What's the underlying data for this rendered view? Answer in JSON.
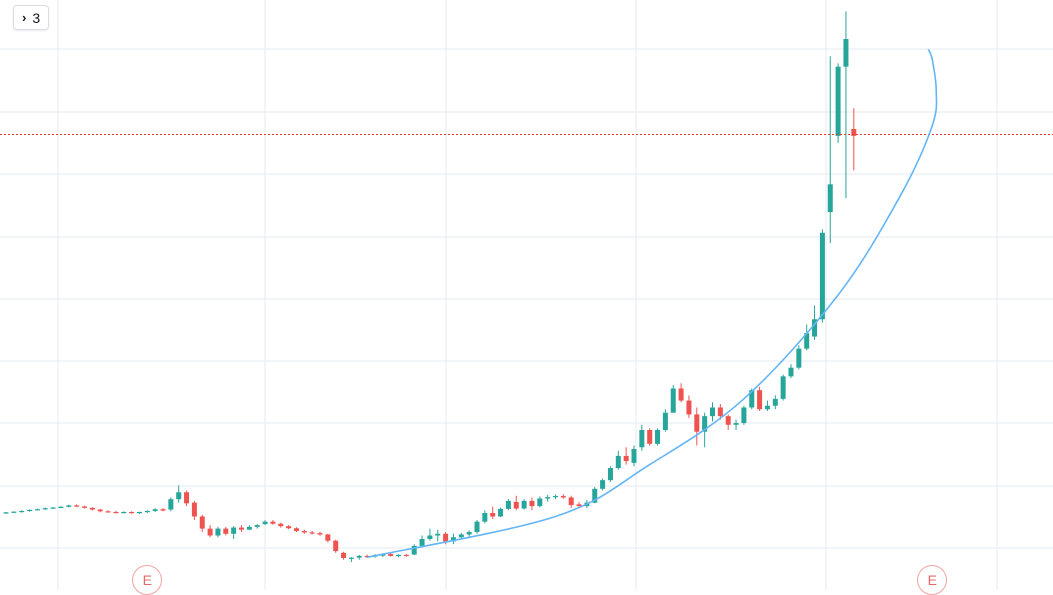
{
  "toolbar": {
    "collapse_count": "3"
  },
  "colors": {
    "up": "#26a69a",
    "down": "#ef5350",
    "trend": "#64b5f6",
    "price_line": "#e53935",
    "grid": "#e6ebf1"
  },
  "events": [
    {
      "label": "E",
      "index": 18
    },
    {
      "label": "E",
      "index": 118
    }
  ],
  "chart_data": {
    "type": "candlestick",
    "price_line": 122.4,
    "grid": true,
    "y_range": [
      0,
      150
    ],
    "candles": [
      {
        "o": 13.0,
        "h": 13.3,
        "l": 12.8,
        "c": 13.2
      },
      {
        "o": 13.2,
        "h": 13.5,
        "l": 13.0,
        "c": 13.4
      },
      {
        "o": 13.4,
        "h": 13.8,
        "l": 13.1,
        "c": 13.6
      },
      {
        "o": 13.6,
        "h": 14.0,
        "l": 13.4,
        "c": 13.9
      },
      {
        "o": 13.9,
        "h": 14.3,
        "l": 13.8,
        "c": 14.1
      },
      {
        "o": 14.1,
        "h": 14.6,
        "l": 13.9,
        "c": 14.4
      },
      {
        "o": 14.4,
        "h": 14.7,
        "l": 14.2,
        "c": 14.6
      },
      {
        "o": 14.6,
        "h": 15.0,
        "l": 14.4,
        "c": 14.8
      },
      {
        "o": 14.8,
        "h": 15.4,
        "l": 14.6,
        "c": 15.2
      },
      {
        "o": 15.2,
        "h": 15.5,
        "l": 14.7,
        "c": 14.9
      },
      {
        "o": 14.9,
        "h": 15.1,
        "l": 14.3,
        "c": 14.5
      },
      {
        "o": 14.5,
        "h": 14.7,
        "l": 13.7,
        "c": 14.0
      },
      {
        "o": 14.0,
        "h": 14.2,
        "l": 13.2,
        "c": 13.5
      },
      {
        "o": 13.5,
        "h": 13.8,
        "l": 13.1,
        "c": 13.3
      },
      {
        "o": 13.3,
        "h": 13.6,
        "l": 12.9,
        "c": 13.2
      },
      {
        "o": 13.2,
        "h": 13.5,
        "l": 12.9,
        "c": 13.3
      },
      {
        "o": 13.3,
        "h": 13.5,
        "l": 12.8,
        "c": 13.0
      },
      {
        "o": 13.0,
        "h": 13.4,
        "l": 12.7,
        "c": 13.3
      },
      {
        "o": 13.3,
        "h": 13.8,
        "l": 13.0,
        "c": 13.6
      },
      {
        "o": 13.6,
        "h": 14.4,
        "l": 13.3,
        "c": 14.1
      },
      {
        "o": 14.1,
        "h": 14.5,
        "l": 13.5,
        "c": 13.7
      },
      {
        "o": 14.0,
        "h": 17.5,
        "l": 13.5,
        "c": 17.0
      },
      {
        "o": 17.0,
        "h": 21.0,
        "l": 16.0,
        "c": 19.0
      },
      {
        "o": 19.0,
        "h": 19.5,
        "l": 15.0,
        "c": 15.8
      },
      {
        "o": 16.0,
        "h": 16.5,
        "l": 11.0,
        "c": 12.0
      },
      {
        "o": 12.0,
        "h": 12.5,
        "l": 7.5,
        "c": 8.5
      },
      {
        "o": 8.5,
        "h": 9.5,
        "l": 6.0,
        "c": 6.5
      },
      {
        "o": 6.5,
        "h": 9.0,
        "l": 6.0,
        "c": 8.5
      },
      {
        "o": 8.5,
        "h": 9.0,
        "l": 6.5,
        "c": 7.0
      },
      {
        "o": 7.0,
        "h": 9.2,
        "l": 5.5,
        "c": 8.8
      },
      {
        "o": 8.8,
        "h": 9.5,
        "l": 7.5,
        "c": 8.2
      },
      {
        "o": 8.2,
        "h": 9.5,
        "l": 8.0,
        "c": 9.0
      },
      {
        "o": 9.0,
        "h": 9.8,
        "l": 8.5,
        "c": 9.5
      },
      {
        "o": 9.8,
        "h": 11.0,
        "l": 9.5,
        "c": 10.5
      },
      {
        "o": 10.5,
        "h": 11.0,
        "l": 9.6,
        "c": 9.9
      },
      {
        "o": 9.9,
        "h": 10.2,
        "l": 8.8,
        "c": 9.2
      },
      {
        "o": 9.2,
        "h": 9.5,
        "l": 8.3,
        "c": 8.6
      },
      {
        "o": 8.6,
        "h": 8.9,
        "l": 7.5,
        "c": 7.8
      },
      {
        "o": 7.8,
        "h": 8.2,
        "l": 7.0,
        "c": 7.4
      },
      {
        "o": 7.4,
        "h": 7.8,
        "l": 6.8,
        "c": 7.2
      },
      {
        "o": 7.2,
        "h": 7.6,
        "l": 6.4,
        "c": 6.8
      },
      {
        "o": 6.8,
        "h": 7.0,
        "l": 4.5,
        "c": 5.0
      },
      {
        "o": 5.0,
        "h": 5.3,
        "l": 1.5,
        "c": 2.0
      },
      {
        "o": 1.5,
        "h": 1.8,
        "l": -0.5,
        "c": 0.0
      },
      {
        "o": -0.2,
        "h": 0.3,
        "l": -1.2,
        "c": 0.1
      },
      {
        "o": 0.1,
        "h": 0.9,
        "l": -0.5,
        "c": 0.6
      },
      {
        "o": 0.6,
        "h": 1.0,
        "l": 0.0,
        "c": 0.4
      },
      {
        "o": 0.4,
        "h": 1.1,
        "l": 0.1,
        "c": 0.8
      },
      {
        "o": 0.8,
        "h": 1.3,
        "l": 0.3,
        "c": 1.0
      },
      {
        "o": 1.2,
        "h": 1.5,
        "l": 0.4,
        "c": 0.6
      },
      {
        "o": 0.6,
        "h": 1.1,
        "l": 0.2,
        "c": 0.9
      },
      {
        "o": 0.9,
        "h": 1.2,
        "l": 0.4,
        "c": 0.7
      },
      {
        "o": 1.0,
        "h": 4.0,
        "l": 0.8,
        "c": 3.5
      },
      {
        "o": 3.5,
        "h": 6.5,
        "l": 3.0,
        "c": 5.5
      },
      {
        "o": 5.5,
        "h": 8.5,
        "l": 5.0,
        "c": 6.5
      },
      {
        "o": 6.5,
        "h": 8.2,
        "l": 4.8,
        "c": 7.0
      },
      {
        "o": 7.0,
        "h": 7.5,
        "l": 4.0,
        "c": 4.8
      },
      {
        "o": 4.8,
        "h": 7.0,
        "l": 4.0,
        "c": 6.0
      },
      {
        "o": 6.0,
        "h": 7.3,
        "l": 5.4,
        "c": 6.8
      },
      {
        "o": 6.8,
        "h": 8.0,
        "l": 6.0,
        "c": 7.5
      },
      {
        "o": 7.5,
        "h": 11.0,
        "l": 7.0,
        "c": 10.5
      },
      {
        "o": 10.5,
        "h": 13.8,
        "l": 10.0,
        "c": 13.0
      },
      {
        "o": 13.0,
        "h": 14.8,
        "l": 11.3,
        "c": 12.0
      },
      {
        "o": 12.0,
        "h": 14.6,
        "l": 11.8,
        "c": 14.2
      },
      {
        "o": 14.2,
        "h": 17.0,
        "l": 13.8,
        "c": 16.5
      },
      {
        "o": 16.2,
        "h": 18.0,
        "l": 13.8,
        "c": 14.3
      },
      {
        "o": 14.3,
        "h": 17.0,
        "l": 14.0,
        "c": 16.5
      },
      {
        "o": 16.5,
        "h": 17.5,
        "l": 13.8,
        "c": 15.0
      },
      {
        "o": 15.0,
        "h": 17.8,
        "l": 14.6,
        "c": 17.2
      },
      {
        "o": 17.2,
        "h": 18.2,
        "l": 16.3,
        "c": 17.6
      },
      {
        "o": 17.6,
        "h": 18.4,
        "l": 17.0,
        "c": 17.9
      },
      {
        "o": 17.9,
        "h": 18.4,
        "l": 17.1,
        "c": 17.5
      },
      {
        "o": 17.5,
        "h": 18.0,
        "l": 14.5,
        "c": 15.3
      },
      {
        "o": 15.5,
        "h": 16.2,
        "l": 14.8,
        "c": 15.0
      },
      {
        "o": 15.0,
        "h": 16.8,
        "l": 14.5,
        "c": 16.0
      },
      {
        "o": 16.0,
        "h": 20.5,
        "l": 15.8,
        "c": 20.0
      },
      {
        "o": 20.0,
        "h": 23.0,
        "l": 19.5,
        "c": 22.5
      },
      {
        "o": 22.5,
        "h": 26.5,
        "l": 22.0,
        "c": 26.0
      },
      {
        "o": 26.0,
        "h": 31.0,
        "l": 25.5,
        "c": 29.5
      },
      {
        "o": 29.5,
        "h": 32.0,
        "l": 27.0,
        "c": 28.0
      },
      {
        "o": 27.5,
        "h": 32.5,
        "l": 26.5,
        "c": 31.5
      },
      {
        "o": 32.0,
        "h": 38.5,
        "l": 31.0,
        "c": 37.0
      },
      {
        "o": 37.0,
        "h": 37.5,
        "l": 32.5,
        "c": 33.0
      },
      {
        "o": 33.0,
        "h": 37.5,
        "l": 32.5,
        "c": 37.0
      },
      {
        "o": 37.0,
        "h": 43.0,
        "l": 36.5,
        "c": 42.0
      },
      {
        "o": 42.0,
        "h": 50.0,
        "l": 42.0,
        "c": 49.0
      },
      {
        "o": 49.0,
        "h": 50.5,
        "l": 45.0,
        "c": 45.5
      },
      {
        "o": 45.5,
        "h": 47.0,
        "l": 40.5,
        "c": 41.5
      },
      {
        "o": 41.5,
        "h": 43.5,
        "l": 32.5,
        "c": 36.5
      },
      {
        "o": 36.5,
        "h": 42.0,
        "l": 32.0,
        "c": 41.0
      },
      {
        "o": 41.0,
        "h": 45.0,
        "l": 39.5,
        "c": 43.5
      },
      {
        "o": 43.5,
        "h": 44.5,
        "l": 40.0,
        "c": 41.0
      },
      {
        "o": 41.0,
        "h": 41.5,
        "l": 37.0,
        "c": 38.5
      },
      {
        "o": 38.5,
        "h": 40.0,
        "l": 37.0,
        "c": 39.0
      },
      {
        "o": 39.0,
        "h": 44.0,
        "l": 38.5,
        "c": 43.5
      },
      {
        "o": 43.5,
        "h": 49.0,
        "l": 43.0,
        "c": 48.5
      },
      {
        "o": 48.5,
        "h": 49.5,
        "l": 42.5,
        "c": 43.0
      },
      {
        "o": 43.0,
        "h": 45.5,
        "l": 42.5,
        "c": 44.0
      },
      {
        "o": 44.0,
        "h": 47.0,
        "l": 43.0,
        "c": 46.0
      },
      {
        "o": 46.0,
        "h": 53.0,
        "l": 45.5,
        "c": 52.5
      },
      {
        "o": 52.5,
        "h": 56.0,
        "l": 52.0,
        "c": 55.0
      },
      {
        "o": 55.0,
        "h": 61.5,
        "l": 54.5,
        "c": 60.5
      },
      {
        "o": 60.5,
        "h": 67.5,
        "l": 60.0,
        "c": 65.0
      },
      {
        "o": 64.0,
        "h": 73.0,
        "l": 63.0,
        "c": 69.0
      },
      {
        "o": 69.0,
        "h": 95.0,
        "l": 68.0,
        "c": 94.0
      },
      {
        "o": 100.0,
        "h": 145.0,
        "l": 91.0,
        "c": 108.0
      },
      {
        "o": 122.0,
        "h": 143.0,
        "l": 120.0,
        "c": 142.0
      },
      {
        "o": 142.0,
        "h": 158.0,
        "l": 104.0,
        "c": 150.0
      },
      {
        "o": 124.0,
        "h": 130.0,
        "l": 112.0,
        "c": 122.0
      }
    ],
    "trend_curve": [
      [
        46,
        0.2
      ],
      [
        70,
        12
      ],
      [
        82,
        27
      ],
      [
        94,
        46
      ],
      [
        106,
        76
      ],
      [
        114,
        105
      ],
      [
        118,
        125
      ],
      [
        118.5,
        135
      ],
      [
        118,
        144
      ],
      [
        117.5,
        147
      ]
    ]
  }
}
